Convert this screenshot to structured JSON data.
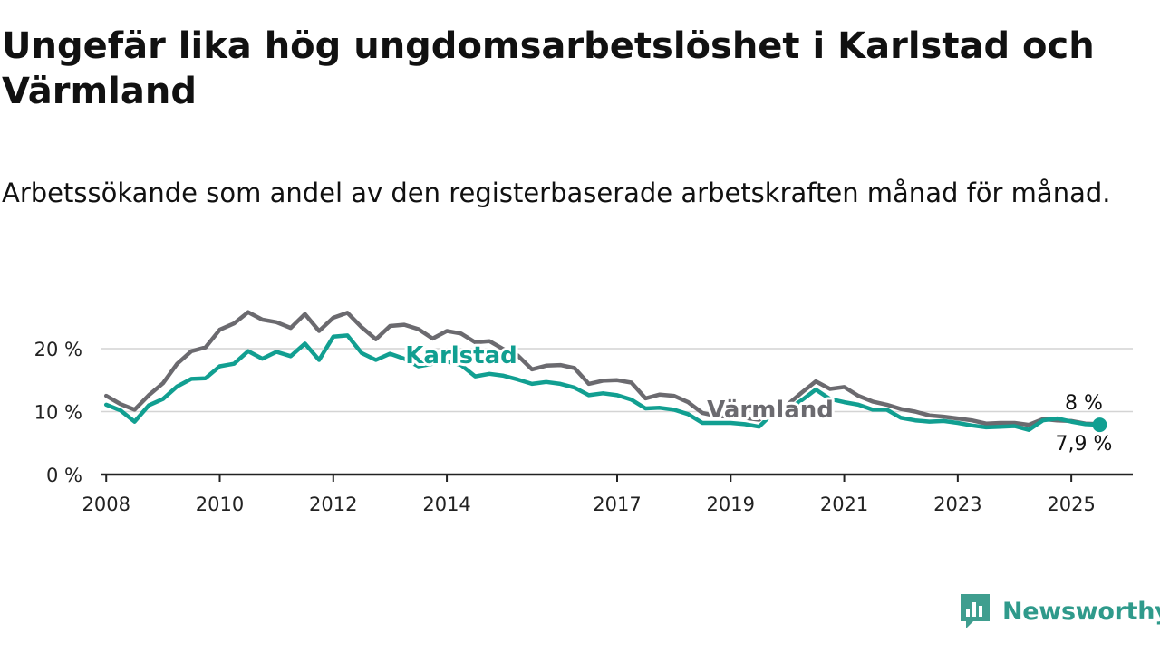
{
  "title": "Ungefär lika hög ungdomsarbetslöshet i Karlstad och Värmland",
  "subtitle": "Arbetssökande som andel av den registerbaserade arbetskraften månad för månad.",
  "brand": {
    "name": "Newsworthy",
    "icon": "bar-chart-speech-bubble-icon",
    "color": "#3f9e8f"
  },
  "chart_data": {
    "type": "line",
    "x_ticks": [
      "2008",
      "2010",
      "2012",
      "2014",
      "2017",
      "2019",
      "2021",
      "2023",
      "2025"
    ],
    "y_ticks": [
      "0 %",
      "10 %",
      "20 %"
    ],
    "ylim": [
      0,
      27
    ],
    "xlim": [
      "2007-12",
      "2026-02"
    ],
    "grid": true,
    "series": [
      {
        "name": "Värmland",
        "color": "#6b6a6f",
        "end_label": "8 %",
        "points": [
          [
            "2008-01",
            12.5
          ],
          [
            "2008-04",
            11.2
          ],
          [
            "2008-07",
            10.3
          ],
          [
            "2008-10",
            12.6
          ],
          [
            "2009-01",
            14.5
          ],
          [
            "2009-04",
            17.6
          ],
          [
            "2009-07",
            19.6
          ],
          [
            "2009-10",
            20.2
          ],
          [
            "2010-01",
            23.0
          ],
          [
            "2010-04",
            24.0
          ],
          [
            "2010-07",
            25.8
          ],
          [
            "2010-10",
            24.6
          ],
          [
            "2011-01",
            24.2
          ],
          [
            "2011-04",
            23.3
          ],
          [
            "2011-07",
            25.5
          ],
          [
            "2011-10",
            22.8
          ],
          [
            "2012-01",
            24.9
          ],
          [
            "2012-04",
            25.7
          ],
          [
            "2012-07",
            23.4
          ],
          [
            "2012-10",
            21.5
          ],
          [
            "2013-01",
            23.6
          ],
          [
            "2013-04",
            23.8
          ],
          [
            "2013-07",
            23.1
          ],
          [
            "2013-10",
            21.6
          ],
          [
            "2014-01",
            22.8
          ],
          [
            "2014-04",
            22.4
          ],
          [
            "2014-07",
            21.0
          ],
          [
            "2014-10",
            21.2
          ],
          [
            "2015-01",
            19.9
          ],
          [
            "2015-04",
            18.9
          ],
          [
            "2015-07",
            16.7
          ],
          [
            "2015-10",
            17.3
          ],
          [
            "2016-01",
            17.4
          ],
          [
            "2016-04",
            16.9
          ],
          [
            "2016-07",
            14.4
          ],
          [
            "2016-10",
            14.9
          ],
          [
            "2017-01",
            15.0
          ],
          [
            "2017-04",
            14.6
          ],
          [
            "2017-07",
            12.1
          ],
          [
            "2017-10",
            12.7
          ],
          [
            "2018-01",
            12.5
          ],
          [
            "2018-04",
            11.5
          ],
          [
            "2018-07",
            9.8
          ],
          [
            "2018-10",
            9.3
          ],
          [
            "2019-01",
            9.2
          ],
          [
            "2019-04",
            9.0
          ],
          [
            "2019-07",
            8.7
          ],
          [
            "2019-10",
            10.6
          ],
          [
            "2020-01",
            11.1
          ],
          [
            "2020-04",
            13.0
          ],
          [
            "2020-07",
            14.8
          ],
          [
            "2020-10",
            13.6
          ],
          [
            "2021-01",
            13.9
          ],
          [
            "2021-04",
            12.5
          ],
          [
            "2021-07",
            11.6
          ],
          [
            "2021-10",
            11.1
          ],
          [
            "2022-01",
            10.4
          ],
          [
            "2022-04",
            10.0
          ],
          [
            "2022-07",
            9.4
          ],
          [
            "2022-10",
            9.2
          ],
          [
            "2023-01",
            8.9
          ],
          [
            "2023-04",
            8.6
          ],
          [
            "2023-07",
            8.1
          ],
          [
            "2023-10",
            8.2
          ],
          [
            "2024-01",
            8.2
          ],
          [
            "2024-04",
            7.9
          ],
          [
            "2024-07",
            8.8
          ],
          [
            "2024-10",
            8.6
          ],
          [
            "2025-01",
            8.5
          ],
          [
            "2025-04",
            8.1
          ],
          [
            "2025-07",
            8.0
          ]
        ]
      },
      {
        "name": "Karlstad",
        "color": "#119f91",
        "end_label": "7,9 %",
        "points": [
          [
            "2008-01",
            11.1
          ],
          [
            "2008-04",
            10.2
          ],
          [
            "2008-07",
            8.4
          ],
          [
            "2008-10",
            11.0
          ],
          [
            "2009-01",
            12.0
          ],
          [
            "2009-04",
            14.0
          ],
          [
            "2009-07",
            15.2
          ],
          [
            "2009-10",
            15.3
          ],
          [
            "2010-01",
            17.2
          ],
          [
            "2010-04",
            17.6
          ],
          [
            "2010-07",
            19.6
          ],
          [
            "2010-10",
            18.4
          ],
          [
            "2011-01",
            19.5
          ],
          [
            "2011-04",
            18.8
          ],
          [
            "2011-07",
            20.8
          ],
          [
            "2011-10",
            18.2
          ],
          [
            "2012-01",
            21.9
          ],
          [
            "2012-04",
            22.1
          ],
          [
            "2012-07",
            19.3
          ],
          [
            "2012-10",
            18.2
          ],
          [
            "2013-01",
            19.2
          ],
          [
            "2013-04",
            18.4
          ],
          [
            "2013-07",
            17.2
          ],
          [
            "2013-10",
            17.6
          ],
          [
            "2014-01",
            18.0
          ],
          [
            "2014-04",
            17.4
          ],
          [
            "2014-07",
            15.6
          ],
          [
            "2014-10",
            16.0
          ],
          [
            "2015-01",
            15.7
          ],
          [
            "2015-04",
            15.1
          ],
          [
            "2015-07",
            14.4
          ],
          [
            "2015-10",
            14.7
          ],
          [
            "2016-01",
            14.4
          ],
          [
            "2016-04",
            13.8
          ],
          [
            "2016-07",
            12.6
          ],
          [
            "2016-10",
            12.9
          ],
          [
            "2017-01",
            12.6
          ],
          [
            "2017-04",
            11.9
          ],
          [
            "2017-07",
            10.5
          ],
          [
            "2017-10",
            10.6
          ],
          [
            "2018-01",
            10.3
          ],
          [
            "2018-04",
            9.6
          ],
          [
            "2018-07",
            8.2
          ],
          [
            "2018-10",
            8.2
          ],
          [
            "2019-01",
            8.2
          ],
          [
            "2019-04",
            8.0
          ],
          [
            "2019-07",
            7.6
          ],
          [
            "2019-10",
            9.8
          ],
          [
            "2020-01",
            10.3
          ],
          [
            "2020-04",
            11.8
          ],
          [
            "2020-07",
            13.5
          ],
          [
            "2020-10",
            12.0
          ],
          [
            "2021-01",
            11.5
          ],
          [
            "2021-04",
            11.1
          ],
          [
            "2021-07",
            10.3
          ],
          [
            "2021-10",
            10.3
          ],
          [
            "2022-01",
            9.0
          ],
          [
            "2022-04",
            8.6
          ],
          [
            "2022-07",
            8.4
          ],
          [
            "2022-10",
            8.5
          ],
          [
            "2023-01",
            8.2
          ],
          [
            "2023-04",
            7.8
          ],
          [
            "2023-07",
            7.5
          ],
          [
            "2023-10",
            7.6
          ],
          [
            "2024-01",
            7.7
          ],
          [
            "2024-04",
            7.1
          ],
          [
            "2024-07",
            8.6
          ],
          [
            "2024-10",
            8.9
          ],
          [
            "2025-01",
            8.4
          ],
          [
            "2025-04",
            8.0
          ],
          [
            "2025-07",
            7.9
          ]
        ]
      }
    ]
  }
}
